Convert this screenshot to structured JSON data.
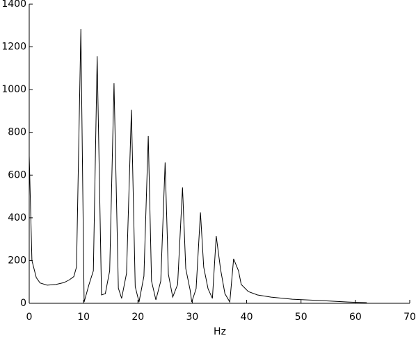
{
  "chart_data": {
    "type": "line",
    "x_label": "Hz",
    "x": [
      0,
      0.5,
      1.3,
      2.0,
      3.3,
      4.9,
      6.4,
      7.4,
      8.2,
      8.7,
      9.5,
      10.1,
      11.0,
      11.8,
      12.5,
      13.3,
      14.0,
      14.8,
      15.6,
      16.4,
      17.0,
      17.9,
      18.8,
      19.5,
      20.2,
      21.1,
      21.9,
      22.5,
      23.3,
      24.2,
      25.0,
      25.6,
      26.4,
      27.3,
      28.2,
      28.8,
      29.6,
      29.9,
      30.7,
      31.5,
      32.1,
      32.9,
      33.7,
      34.4,
      35.2,
      36.0,
      36.9,
      37.6,
      38.5,
      39.0,
      40.3,
      42.0,
      44.5,
      48.4,
      53.5,
      58.6,
      62.1
    ],
    "series": [
      {
        "color": "#000000",
        "values": [
          690,
          200,
          120,
          95,
          85,
          88,
          97,
          110,
          125,
          170,
          1283,
          6,
          88,
          152,
          1156,
          39,
          45,
          152,
          1030,
          71,
          23,
          140,
          906,
          78,
          6,
          127,
          783,
          104,
          16,
          104,
          659,
          136,
          29,
          88,
          542,
          162,
          62,
          6,
          68,
          425,
          169,
          68,
          23,
          315,
          159,
          45,
          6,
          208,
          152,
          88,
          55,
          39,
          29,
          19,
          13,
          6,
          3
        ]
      }
    ],
    "xlim": [
      0,
      70
    ],
    "xticks": [
      0,
      10,
      20,
      30,
      40,
      50,
      60,
      70
    ],
    "ylim": [
      0,
      1400
    ],
    "yticks": [
      0,
      200,
      400,
      600,
      800,
      1000,
      1200,
      1400
    ]
  }
}
